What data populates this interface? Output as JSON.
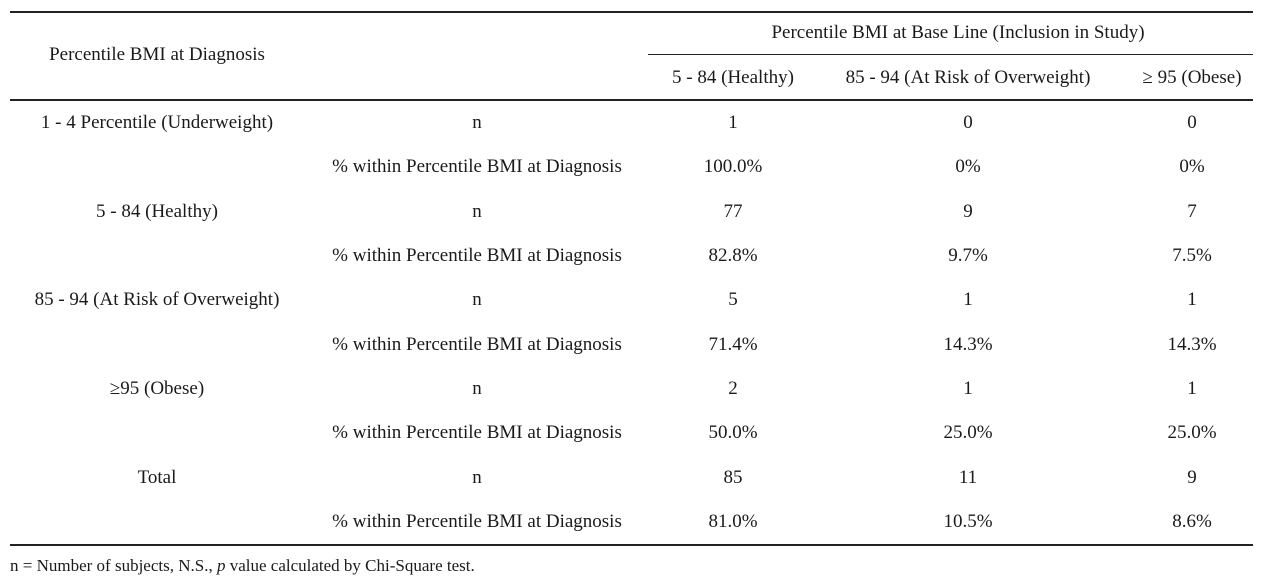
{
  "table": {
    "row_header": "Percentile BMI at Diagnosis",
    "group_header": "Percentile BMI at Base Line (Inclusion in Study)",
    "columns": [
      "5 - 84 (Healthy)",
      "85 - 94 (At Risk of Overweight)",
      "≥ 95 (Obese)"
    ],
    "groups": [
      {
        "label": "1 - 4 Percentile (Underweight)",
        "rows": [
          {
            "measure": "n",
            "values": [
              "1",
              "0",
              "0"
            ]
          },
          {
            "measure": "% within Percentile BMI at Diagnosis",
            "values": [
              "100.0%",
              "0%",
              "0%"
            ]
          }
        ]
      },
      {
        "label": "5 - 84 (Healthy)",
        "rows": [
          {
            "measure": "n",
            "values": [
              "77",
              "9",
              "7"
            ]
          },
          {
            "measure": "% within Percentile BMI at Diagnosis",
            "values": [
              "82.8%",
              "9.7%",
              "7.5%"
            ]
          }
        ]
      },
      {
        "label": "85 - 94 (At Risk of Overweight)",
        "rows": [
          {
            "measure": "n",
            "values": [
              "5",
              "1",
              "1"
            ]
          },
          {
            "measure": "% within Percentile BMI at Diagnosis",
            "values": [
              "71.4%",
              "14.3%",
              "14.3%"
            ]
          }
        ]
      },
      {
        "label": "≥95 (Obese)",
        "rows": [
          {
            "measure": "n",
            "values": [
              "2",
              "1",
              "1"
            ]
          },
          {
            "measure": "% within Percentile BMI at Diagnosis",
            "values": [
              "50.0%",
              "25.0%",
              "25.0%"
            ]
          }
        ]
      },
      {
        "label": "Total",
        "rows": [
          {
            "measure": "n",
            "values": [
              "85",
              "11",
              "9"
            ]
          },
          {
            "measure": "% within Percentile BMI at Diagnosis",
            "values": [
              "81.0%",
              "10.5%",
              "8.6%"
            ]
          }
        ]
      }
    ]
  },
  "footnote": {
    "prefix": "n = Number of subjects, N.S., ",
    "italic": "p",
    "suffix": " value calculated by Chi-Square test."
  }
}
